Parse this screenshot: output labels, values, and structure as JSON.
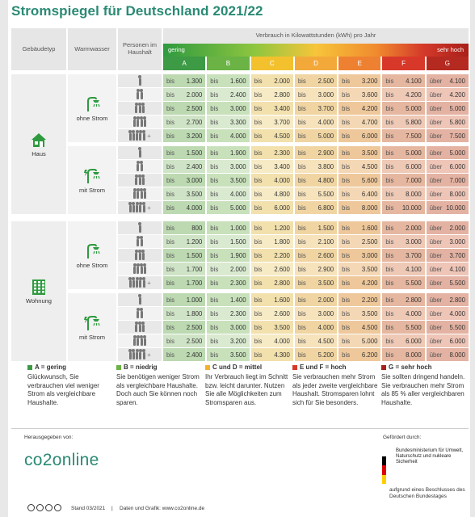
{
  "title": "Stromspiegel für Deutschland 2021/22",
  "headers": {
    "gebaeudetyp": "Gebäudetyp",
    "warmwasser": "Warmwasser",
    "personen": "Personen im Haushalt",
    "verbrauch": "Verbrauch in Kilowattstunden (kWh) pro Jahr",
    "gering": "gering",
    "sehr_hoch": "sehr hoch",
    "classes": [
      "A",
      "B",
      "C",
      "D",
      "E",
      "F",
      "G"
    ]
  },
  "class_colors": [
    "#3d9a45",
    "#6ab344",
    "#f3c12e",
    "#f3a93a",
    "#ee8131",
    "#d8382a",
    "#b52a20"
  ],
  "groups": [
    {
      "building": "Haus",
      "variants": [
        {
          "water": "ohne Strom",
          "rows": [
            {
              "persons": 1,
              "plus": false,
              "values": [
                "bis 1.300",
                "bis 1.600",
                "bis 2.000",
                "bis 2.500",
                "bis 3.200",
                "bis 4.100",
                "über 4.100"
              ]
            },
            {
              "persons": 2,
              "plus": false,
              "values": [
                "bis 2.000",
                "bis 2.400",
                "bis 2.800",
                "bis 3.000",
                "bis 3.600",
                "bis 4.200",
                "über 4.200"
              ]
            },
            {
              "persons": 3,
              "plus": false,
              "values": [
                "bis 2.500",
                "bis 3.000",
                "bis 3.400",
                "bis 3.700",
                "bis 4.200",
                "bis 5.000",
                "über 5.000"
              ]
            },
            {
              "persons": 4,
              "plus": false,
              "values": [
                "bis 2.700",
                "bis 3.300",
                "bis 3.700",
                "bis 4.000",
                "bis 4.700",
                "bis 5.800",
                "über 5.800"
              ]
            },
            {
              "persons": 5,
              "plus": true,
              "values": [
                "bis 3.200",
                "bis 4.000",
                "bis 4.500",
                "bis 5.000",
                "bis 6.000",
                "bis 7.500",
                "über 7.500"
              ]
            }
          ]
        },
        {
          "water": "mit Strom",
          "rows": [
            {
              "persons": 1,
              "plus": false,
              "values": [
                "bis 1.500",
                "bis 1.900",
                "bis 2.300",
                "bis 2.900",
                "bis 3.500",
                "bis 5.000",
                "über 5.000"
              ]
            },
            {
              "persons": 2,
              "plus": false,
              "values": [
                "bis 2.400",
                "bis 3.000",
                "bis 3.400",
                "bis 3.800",
                "bis 4.500",
                "bis 6.000",
                "über 6.000"
              ]
            },
            {
              "persons": 3,
              "plus": false,
              "values": [
                "bis 3.000",
                "bis 3.500",
                "bis 4.000",
                "bis 4.800",
                "bis 5.600",
                "bis 7.000",
                "über 7.000"
              ]
            },
            {
              "persons": 4,
              "plus": false,
              "values": [
                "bis 3.500",
                "bis 4.000",
                "bis 4.800",
                "bis 5.500",
                "bis 6.400",
                "bis 8.000",
                "über 8.000"
              ]
            },
            {
              "persons": 5,
              "plus": true,
              "values": [
                "bis 4.000",
                "bis 5.000",
                "bis 6.000",
                "bis 6.800",
                "bis 8.000",
                "bis 10.000",
                "über 10.000"
              ]
            }
          ]
        }
      ]
    },
    {
      "building": "Wohnung",
      "variants": [
        {
          "water": "ohne Strom",
          "rows": [
            {
              "persons": 1,
              "plus": false,
              "values": [
                "bis 800",
                "bis 1.000",
                "bis 1.200",
                "bis 1.500",
                "bis 1.600",
                "bis 2.000",
                "über 2.000"
              ]
            },
            {
              "persons": 2,
              "plus": false,
              "values": [
                "bis 1.200",
                "bis 1.500",
                "bis 1.800",
                "bis 2.100",
                "bis 2.500",
                "bis 3.000",
                "über 3.000"
              ]
            },
            {
              "persons": 3,
              "plus": false,
              "values": [
                "bis 1.500",
                "bis 1.900",
                "bis 2.200",
                "bis 2.600",
                "bis 3.000",
                "bis 3.700",
                "über 3.700"
              ]
            },
            {
              "persons": 4,
              "plus": false,
              "values": [
                "bis 1.700",
                "bis 2.000",
                "bis 2.600",
                "bis 2.900",
                "bis 3.500",
                "bis 4.100",
                "über 4.100"
              ]
            },
            {
              "persons": 5,
              "plus": true,
              "values": [
                "bis 1.700",
                "bis 2.300",
                "bis 2.800",
                "bis 3.500",
                "bis 4.200",
                "bis 5.500",
                "über 5.500"
              ]
            }
          ]
        },
        {
          "water": "mit Strom",
          "rows": [
            {
              "persons": 1,
              "plus": false,
              "values": [
                "bis 1.000",
                "bis 1.400",
                "bis 1.600",
                "bis 2.000",
                "bis 2.200",
                "bis 2.800",
                "über 2.800"
              ]
            },
            {
              "persons": 2,
              "plus": false,
              "values": [
                "bis 1.800",
                "bis 2.300",
                "bis 2.600",
                "bis 3.000",
                "bis 3.500",
                "bis 4.000",
                "über 4.000"
              ]
            },
            {
              "persons": 3,
              "plus": false,
              "values": [
                "bis 2.500",
                "bis 3.000",
                "bis 3.500",
                "bis 4.000",
                "bis 4.500",
                "bis 5.500",
                "über 5.500"
              ]
            },
            {
              "persons": 4,
              "plus": false,
              "values": [
                "bis 2.500",
                "bis 3.200",
                "bis 4.000",
                "bis 4.500",
                "bis 5.000",
                "bis 6.000",
                "über 6.000"
              ]
            },
            {
              "persons": 5,
              "plus": true,
              "values": [
                "bis 2.400",
                "bis 3.500",
                "bis 4.300",
                "bis 5.200",
                "bis 6.200",
                "bis 8.000",
                "über 8.000"
              ]
            }
          ]
        }
      ]
    }
  ],
  "legend": [
    {
      "head": "A = gering",
      "text": "Glückwunsch, Sie verbrauchen viel weniger Strom als vergleichbare Haushalte.",
      "color": "#3d9a45"
    },
    {
      "head": "B = niedrig",
      "text": "Sie benötigen weniger Strom als vergleichbare Haushalte. Doch auch Sie können noch sparen.",
      "color": "#6ab344"
    },
    {
      "head": "C und D = mittel",
      "text": "Ihr Verbrauch liegt im Schnitt bzw. leicht darunter. Nutzen Sie alle Möglichkeiten zum Stromsparen aus.",
      "color": "#f3b12e"
    },
    {
      "head": "E und F = hoch",
      "text": "Sie verbrauchen mehr Strom als jeder zweite vergleichbare Haushalt. Stromsparen lohnt sich für Sie besonders.",
      "color": "#d8382a"
    },
    {
      "head": "G = sehr hoch",
      "text": "Sie sollten dringend handeln. Sie verbrauchen mehr Strom als 85 % aller vergleichbaren Haushalte.",
      "color": "#a8201a"
    }
  ],
  "footer": {
    "herausgegeben": "Herausgegeben von:",
    "logo": "co2online",
    "gefoerdert": "Gefördert durch:",
    "ministry": "Bundesministerium für Umwelt, Naturschutz und nukleare Sicherheit",
    "beschluss": "aufgrund eines Beschlusses des Deutschen Bundestages",
    "stand": "Stand 03/2021",
    "credits": "Daten und Grafik: www.co2online.de"
  }
}
